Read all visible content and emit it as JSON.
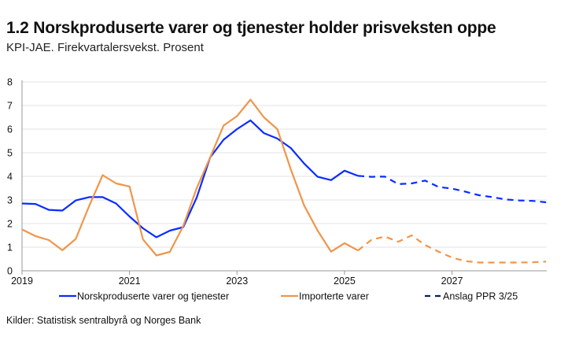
{
  "chart_data": {
    "type": "line",
    "title": "1.2 Norskproduserte varer og tjenester holder prisveksten oppe",
    "subtitle": "KPI-JAE. Firekvartalersvekst. Prosent",
    "source": "Kilder: Statistisk sentralbyrå og Norges Bank",
    "x_start": "2019Q1",
    "x_frequency": "quarterly",
    "xticks": [
      "2019",
      "2021",
      "2023",
      "2025",
      "2027"
    ],
    "yticks": [
      0,
      1,
      2,
      3,
      4,
      5,
      6,
      7,
      8
    ],
    "ylim": [
      0,
      8
    ],
    "grid": "horizontal",
    "legend_placement": "bottom",
    "forecast_start": "2025Q2",
    "series": [
      {
        "name": "Norskproduserte varer og tjenester",
        "color": "#0a2cff",
        "values": [
          2.85,
          2.83,
          2.58,
          2.55,
          2.98,
          3.12,
          3.12,
          2.85,
          2.3,
          1.8,
          1.42,
          1.7,
          1.85,
          3.1,
          4.8,
          5.55,
          6.0,
          6.37,
          5.83,
          5.6,
          5.2,
          4.54,
          3.98,
          3.84,
          4.24,
          4.02,
          3.98,
          3.99,
          3.67,
          3.7,
          3.82,
          3.55,
          3.48,
          3.35,
          3.2,
          3.12,
          3.02,
          2.98,
          2.96,
          2.9
        ]
      },
      {
        "name": "Importerte varer",
        "color": "#f0954a",
        "values": [
          1.75,
          1.47,
          1.3,
          0.87,
          1.35,
          2.75,
          4.05,
          3.7,
          3.57,
          1.33,
          0.65,
          0.8,
          1.9,
          3.5,
          4.8,
          6.15,
          6.55,
          7.25,
          6.5,
          6.0,
          4.3,
          2.76,
          1.7,
          0.81,
          1.17,
          0.86,
          1.31,
          1.45,
          1.23,
          1.5,
          1.09,
          0.81,
          0.56,
          0.41,
          0.35,
          0.35,
          0.35,
          0.35,
          0.36,
          0.39
        ]
      }
    ],
    "forecast_legend": {
      "name": "Anslag PPR 3/25",
      "color": "#0b1e5b"
    }
  }
}
